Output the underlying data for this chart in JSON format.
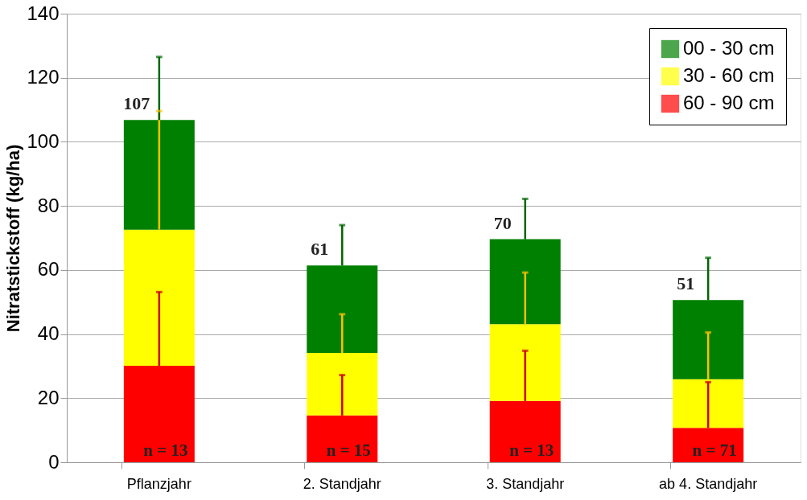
{
  "chart_data": {
    "type": "bar",
    "stacked": true,
    "ylabel": "Nitratstickstoff (kg/ha)",
    "categories": [
      "Pflanzjahr",
      "2. Standjahr",
      "3. Standjahr",
      "ab 4. Standjahr"
    ],
    "series": [
      {
        "name": "60 - 90 cm",
        "color": "#ff0000",
        "values": [
          30.1,
          14.6,
          19.1,
          10.7
        ],
        "errors": [
          [
            30.1,
            53.1
          ],
          [
            14.6,
            27.2
          ],
          [
            19.1,
            34.8
          ],
          [
            10.7,
            25.0
          ]
        ]
      },
      {
        "name": "30 - 60 cm",
        "color": "#ffff00",
        "values": [
          42.5,
          19.5,
          24.0,
          15.2
        ],
        "errors": [
          [
            72.6,
            109.6
          ],
          [
            34.1,
            46.2
          ],
          [
            43.1,
            59.2
          ],
          [
            25.9,
            40.5
          ]
        ]
      },
      {
        "name": "00 - 30 cm",
        "color": "#008000",
        "values": [
          34.2,
          27.3,
          26.5,
          24.7
        ],
        "errors": [
          [
            106.8,
            126.5
          ],
          [
            61.4,
            74.0
          ],
          [
            69.6,
            82.2
          ],
          [
            50.6,
            63.8
          ]
        ]
      }
    ],
    "totals": [
      "107",
      "61",
      "70",
      "51"
    ],
    "annotations": [
      "n = 13",
      "n = 15",
      "n = 13",
      "n = 71"
    ],
    "ylim": [
      0,
      140
    ],
    "yticks": [
      0,
      20,
      40,
      60,
      80,
      100,
      120,
      140
    ],
    "grid": "y",
    "legend": "top right"
  }
}
